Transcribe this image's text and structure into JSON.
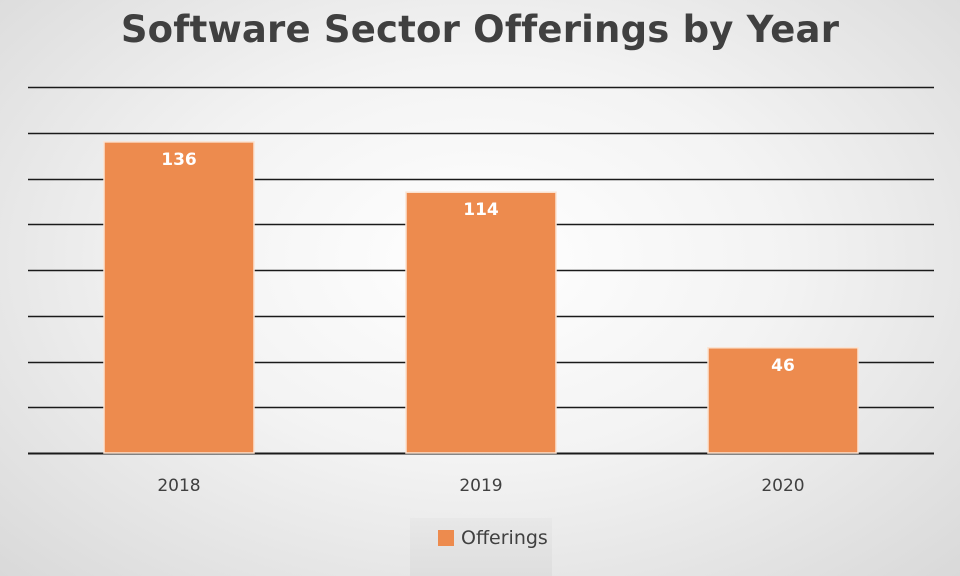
{
  "chart_data": {
    "type": "bar",
    "title": "Software Sector Offerings by Year",
    "categories": [
      "2018",
      "2019",
      "2020"
    ],
    "series": [
      {
        "name": "Offerings",
        "values": [
          136,
          114,
          46
        ]
      }
    ],
    "data_labels": [
      "136",
      "114",
      "46"
    ],
    "ylim": [
      0,
      160
    ],
    "y_gridline_step": 20,
    "y_tick_labels_shown": false,
    "grid": true,
    "legend": "bottom",
    "colors": {
      "bar": "#ED8B4E",
      "bar_edge": "#FBE3D2",
      "grid": "#1a1a1a",
      "title": "#404040",
      "tick_label": "#404040",
      "data_label": "#ffffff"
    }
  }
}
